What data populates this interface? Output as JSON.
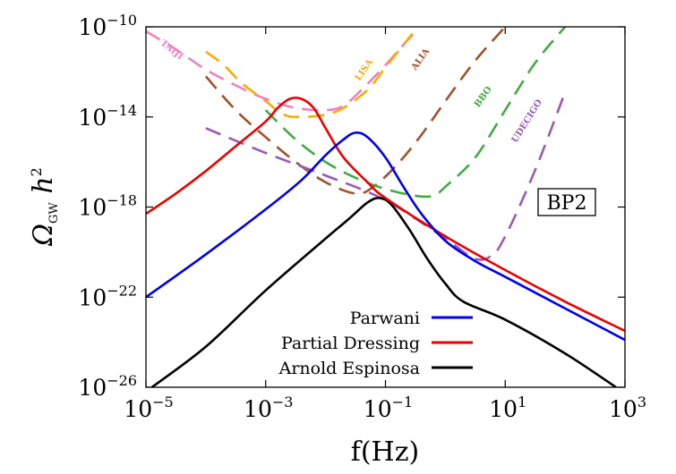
{
  "chart_data": {
    "type": "line",
    "title": "",
    "xlabel": "f(Hz)",
    "ylabel": "Ω_GW h^2",
    "xscale": "log",
    "yscale": "log",
    "xlim": [
      1e-05,
      1000
    ],
    "ylim": [
      1e-26,
      1e-10
    ],
    "annotation": "BP2",
    "legend_position": "bottom-center",
    "xticks": [
      {
        "base": "10",
        "exp": "−5",
        "value": -5
      },
      {
        "base": "10",
        "exp": "−3",
        "value": -3
      },
      {
        "base": "10",
        "exp": "−1",
        "value": -1
      },
      {
        "base": "10",
        "exp": "1",
        "value": 1
      },
      {
        "base": "10",
        "exp": "3",
        "value": 3
      }
    ],
    "yticks": [
      {
        "base": "10",
        "exp": "−10",
        "value": -10
      },
      {
        "base": "10",
        "exp": "−14",
        "value": -14
      },
      {
        "base": "10",
        "exp": "−18",
        "value": -18
      },
      {
        "base": "10",
        "exp": "−22",
        "value": -22
      },
      {
        "base": "10",
        "exp": "−26",
        "value": -26
      }
    ],
    "series": [
      {
        "name": "Parwani",
        "color": "#0000ee",
        "style": "solid",
        "points": [
          [
            -5,
            -22
          ],
          [
            -4,
            -20.1
          ],
          [
            -3,
            -18.1
          ],
          [
            -2.4,
            -16.8
          ],
          [
            -2,
            -15.7
          ],
          [
            -1.7,
            -15
          ],
          [
            -1.5,
            -14.7
          ],
          [
            -1.3,
            -14.9
          ],
          [
            -1,
            -15.8
          ],
          [
            -0.7,
            -17.1
          ],
          [
            -0.4,
            -18.3
          ],
          [
            0,
            -19.5
          ],
          [
            0.5,
            -20.4
          ],
          [
            1,
            -21.1
          ],
          [
            2,
            -22.5
          ],
          [
            3,
            -23.9
          ]
        ]
      },
      {
        "name": "Partial Dressing",
        "color": "#ee0000",
        "style": "solid",
        "points": [
          [
            -5,
            -18.3
          ],
          [
            -4.5,
            -17.4
          ],
          [
            -4,
            -16.4
          ],
          [
            -3.5,
            -15.3
          ],
          [
            -3,
            -14.2
          ],
          [
            -2.8,
            -13.6
          ],
          [
            -2.6,
            -13.2
          ],
          [
            -2.4,
            -13.2
          ],
          [
            -2.2,
            -13.6
          ],
          [
            -2,
            -14.5
          ],
          [
            -1.7,
            -15.8
          ],
          [
            -1.3,
            -16.9
          ],
          [
            -1,
            -17.6
          ],
          [
            0,
            -19.3
          ],
          [
            1,
            -20.8
          ],
          [
            2,
            -22.2
          ],
          [
            3,
            -23.5
          ]
        ]
      },
      {
        "name": "Arnold Espinosa",
        "color": "#000000",
        "style": "solid",
        "points": [
          [
            -4.9,
            -26
          ],
          [
            -4,
            -24.2
          ],
          [
            -3,
            -21.7
          ],
          [
            -2,
            -19.4
          ],
          [
            -1.6,
            -18.5
          ],
          [
            -1.3,
            -17.8
          ],
          [
            -1.1,
            -17.6
          ],
          [
            -0.9,
            -17.9
          ],
          [
            -0.6,
            -19
          ],
          [
            -0.3,
            -20.3
          ],
          [
            0,
            -21.4
          ],
          [
            0.3,
            -22.2
          ],
          [
            1,
            -23
          ],
          [
            2,
            -24.5
          ],
          [
            2.85,
            -26
          ]
        ]
      },
      {
        "name": "TAIJI",
        "color": "#f080c0",
        "style": "dashed",
        "points": [
          [
            -5,
            -10.2
          ],
          [
            -4.5,
            -11
          ],
          [
            -4,
            -11.9
          ],
          [
            -3.5,
            -12.6
          ],
          [
            -3,
            -13.2
          ],
          [
            -2.5,
            -13.6
          ],
          [
            -2,
            -13.7
          ],
          [
            -1.7,
            -13.5
          ],
          [
            -1.4,
            -12.8
          ],
          [
            -1,
            -11.7
          ],
          [
            -0.6,
            -10.5
          ],
          [
            -0.5,
            -10.3
          ]
        ]
      },
      {
        "name": "LISA",
        "color": "#ffaa00",
        "style": "dashed",
        "points": [
          [
            -4,
            -11.1
          ],
          [
            -3.7,
            -11.7
          ],
          [
            -3.4,
            -12.5
          ],
          [
            -3,
            -13.3
          ],
          [
            -2.7,
            -13.9
          ],
          [
            -2.4,
            -14
          ],
          [
            -2,
            -13.9
          ],
          [
            -1.7,
            -13.6
          ],
          [
            -1.3,
            -12.8
          ],
          [
            -1,
            -11.8
          ],
          [
            -0.7,
            -10.8
          ],
          [
            -0.55,
            -10.3
          ]
        ]
      },
      {
        "name": "ALIA",
        "color": "#a0522d",
        "style": "dashed",
        "points": [
          [
            -4,
            -12.2
          ],
          [
            -3.5,
            -13.7
          ],
          [
            -3,
            -14.9
          ],
          [
            -2.5,
            -16
          ],
          [
            -2,
            -16.9
          ],
          [
            -1.5,
            -17.4
          ],
          [
            -1.2,
            -17.1
          ],
          [
            -0.8,
            -16.1
          ],
          [
            -0.4,
            -14.8
          ],
          [
            0,
            -13.3
          ],
          [
            0.5,
            -11.5
          ],
          [
            1,
            -10
          ]
        ]
      },
      {
        "name": "BBO",
        "color": "#44aa44",
        "style": "dashed",
        "points": [
          [
            -3,
            -13.7
          ],
          [
            -2.5,
            -15
          ],
          [
            -2,
            -16
          ],
          [
            -1.5,
            -16.7
          ],
          [
            -1,
            -17.2
          ],
          [
            -0.5,
            -17.5
          ],
          [
            -0.2,
            -17.5
          ],
          [
            0,
            -17.1
          ],
          [
            0.5,
            -15.8
          ],
          [
            1,
            -13.7
          ],
          [
            1.5,
            -11.6
          ],
          [
            2,
            -10
          ]
        ]
      },
      {
        "name": "UDECIGO",
        "color": "#9b59b6",
        "style": "dashed",
        "points": [
          [
            -4,
            -14.5
          ],
          [
            -3,
            -15.6
          ],
          [
            -2,
            -16.6
          ],
          [
            -1,
            -17.7
          ],
          [
            0,
            -19.4
          ],
          [
            0.5,
            -20.3
          ],
          [
            0.8,
            -20.1
          ],
          [
            1,
            -19.3
          ],
          [
            1.3,
            -17.6
          ],
          [
            1.6,
            -15.7
          ],
          [
            2,
            -12.9
          ]
        ]
      }
    ],
    "detector_labels": [
      {
        "text": "TAIJI",
        "color": "#f080c0"
      },
      {
        "text": "LISA",
        "color": "#ffaa00"
      },
      {
        "text": "ALIA",
        "color": "#a0522d"
      },
      {
        "text": "BBO",
        "color": "#44aa44"
      },
      {
        "text": "UDECIGO",
        "color": "#9b59b6"
      }
    ]
  },
  "legend": [
    {
      "label": "Parwani",
      "color": "#0000ee"
    },
    {
      "label": "Partial Dressing",
      "color": "#ee0000"
    },
    {
      "label": "Arnold Espinosa",
      "color": "#000000"
    }
  ]
}
